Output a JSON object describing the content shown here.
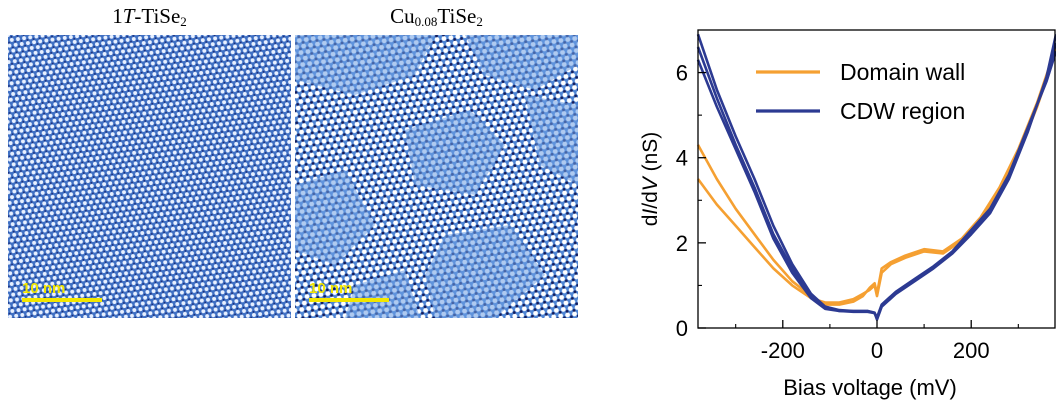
{
  "figure": {
    "left_panel": {
      "title_prefix": "1",
      "title_italic": "T",
      "title_main": "-TiSe",
      "title_sub": "2",
      "scale_bar": "10 nm"
    },
    "right_panel": {
      "title_main": "Cu",
      "title_sub": "0.08",
      "title_main2": "TiSe",
      "title_sub2": "2",
      "scale_bar": "10 nm"
    },
    "colors": {
      "stm_background": "#4f82cf",
      "stm_atom": "#ffffff",
      "stm_dark": "#16246b",
      "scale_bar": "#f2e600",
      "domain_wall": "#f5a032",
      "cdw_region": "#2c3a92"
    }
  },
  "chart_data": {
    "type": "line",
    "xlabel": "Bias voltage (mV)",
    "ylabel_parts": [
      "d",
      "I",
      "/d",
      "V",
      " (nS)"
    ],
    "xlim": [
      -380,
      380
    ],
    "ylim": [
      0,
      7
    ],
    "xticks": [
      -200,
      0,
      200
    ],
    "yticks": [
      0,
      2,
      4,
      6
    ],
    "legend_position": "top-right",
    "series": [
      {
        "name": "Domain wall",
        "color": "#f5a032",
        "curves": [
          {
            "x": [
              -380,
              -340,
              -300,
              -260,
              -220,
              -180,
              -140,
              -110,
              -80,
              -50,
              -30,
              -15,
              -5,
              0,
              10,
              30,
              60,
              100,
              140,
              180,
              220,
              260,
              300,
              340,
              380
            ],
            "y": [
              4.3,
              3.5,
              2.8,
              2.2,
              1.6,
              1.1,
              0.75,
              0.55,
              0.55,
              0.62,
              0.75,
              0.95,
              1.05,
              0.8,
              1.4,
              1.55,
              1.7,
              1.85,
              1.8,
              2.1,
              2.6,
              3.3,
              4.2,
              5.3,
              6.6
            ]
          },
          {
            "x": [
              -380,
              -340,
              -300,
              -260,
              -220,
              -180,
              -140,
              -110,
              -80,
              -50,
              -30,
              -15,
              -5,
              0,
              10,
              30,
              60,
              100,
              140,
              180,
              220,
              260,
              300,
              340,
              380
            ],
            "y": [
              3.5,
              2.9,
              2.4,
              1.9,
              1.4,
              1.0,
              0.7,
              0.6,
              0.6,
              0.68,
              0.8,
              0.9,
              1.0,
              0.75,
              1.3,
              1.5,
              1.65,
              1.8,
              1.75,
              2.05,
              2.55,
              3.25,
              4.1,
              5.2,
              6.5
            ]
          }
        ]
      },
      {
        "name": "CDW region",
        "color": "#2c3a92",
        "curves": [
          {
            "x": [
              -380,
              -340,
              -300,
              -260,
              -220,
              -180,
              -140,
              -110,
              -80,
              -50,
              -20,
              -5,
              0,
              10,
              40,
              80,
              120,
              160,
              200,
              240,
              280,
              320,
              360,
              380
            ],
            "y": [
              6.9,
              5.6,
              4.5,
              3.5,
              2.4,
              1.5,
              0.8,
              0.5,
              0.4,
              0.4,
              0.4,
              0.35,
              0.2,
              0.5,
              0.8,
              1.1,
              1.4,
              1.75,
              2.2,
              2.7,
              3.5,
              4.6,
              5.9,
              6.9
            ]
          },
          {
            "x": [
              -380,
              -340,
              -300,
              -260,
              -220,
              -180,
              -140,
              -110,
              -80,
              -50,
              -20,
              -5,
              0,
              10,
              40,
              80,
              120,
              160,
              200,
              240,
              280,
              320,
              360,
              380
            ],
            "y": [
              6.3,
              5.2,
              4.2,
              3.2,
              2.1,
              1.3,
              0.7,
              0.45,
              0.4,
              0.38,
              0.38,
              0.35,
              0.25,
              0.55,
              0.85,
              1.15,
              1.45,
              1.8,
              2.3,
              2.8,
              3.6,
              4.7,
              5.8,
              6.5
            ]
          },
          {
            "x": [
              -380,
              -340,
              -300,
              -260,
              -220,
              -180,
              -140,
              -110,
              -80,
              -50,
              -20,
              -5,
              0,
              10,
              40,
              80,
              120,
              160,
              200,
              240,
              280,
              320,
              360,
              380
            ],
            "y": [
              6.6,
              5.4,
              4.3,
              3.3,
              2.2,
              1.4,
              0.75,
              0.5,
              0.42,
              0.4,
              0.4,
              0.36,
              0.22,
              0.52,
              0.82,
              1.12,
              1.42,
              1.78,
              2.25,
              2.75,
              3.55,
              4.65,
              5.85,
              6.7
            ]
          }
        ]
      }
    ]
  }
}
